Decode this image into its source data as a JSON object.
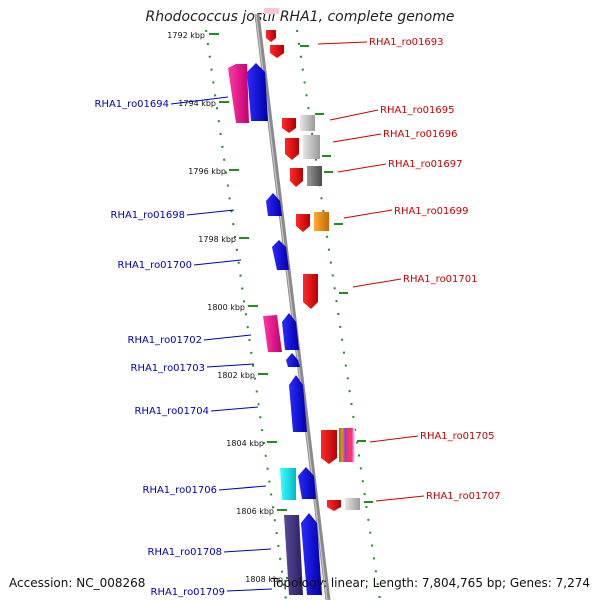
{
  "title": "Rhodococcus jostii RHA1, complete genome",
  "footer": {
    "accession": "Accession: NC_008268",
    "topology": "Topology: linear; Length: 7,804,765 bp; Genes: 7,274"
  },
  "colors": {
    "forward_label": "#cc0000",
    "reverse_label": "#0000bb",
    "axis": "#888888",
    "tick": "#228b22"
  },
  "kbp_marks": [
    "1792 kbp",
    "1794 kbp",
    "1796 kbp",
    "1798 kbp",
    "1800 kbp",
    "1802 kbp",
    "1804 kbp",
    "1806 kbp",
    "1808 kbp"
  ],
  "genes_right": [
    "RHA1_ro01693",
    "RHA1_ro01695",
    "RHA1_ro01696",
    "RHA1_ro01697",
    "RHA1_ro01699",
    "RHA1_ro01701",
    "RHA1_ro01705",
    "RHA1_ro01707"
  ],
  "genes_left": [
    "RHA1_ro01694",
    "RHA1_ro01698",
    "RHA1_ro01700",
    "RHA1_ro01702",
    "RHA1_ro01703",
    "RHA1_ro01704",
    "RHA1_ro01706",
    "RHA1_ro01708",
    "RHA1_ro01709"
  ]
}
